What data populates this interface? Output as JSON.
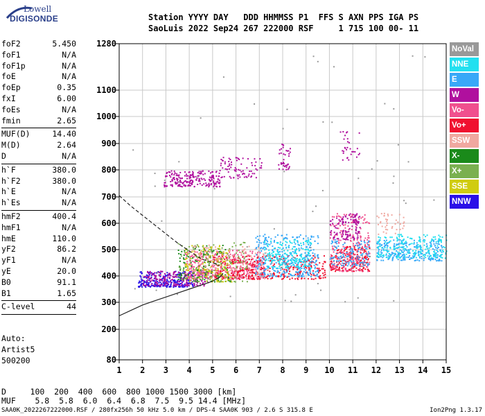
{
  "logo": {
    "top": "Lowell",
    "bottom": "DIGISONDE"
  },
  "header": {
    "line1": "Station YYYY DAY   DDD HHMMSS P1  FFS S AXN PPS IGA PS",
    "line2": "SaoLuis 2022 Sep24 267 222000 RSF     1 715 100 00- 11"
  },
  "params": {
    "group1": [
      {
        "label": "foF2",
        "value": "5.450"
      },
      {
        "label": "foF1",
        "value": "N/A"
      },
      {
        "label": "foF1p",
        "value": "N/A"
      },
      {
        "label": "foE",
        "value": "N/A"
      },
      {
        "label": "foEp",
        "value": "0.35"
      },
      {
        "label": "fxI",
        "value": "6.00"
      },
      {
        "label": "foEs",
        "value": "N/A"
      },
      {
        "label": "fmin",
        "value": "2.65"
      }
    ],
    "group2": [
      {
        "label": "MUF(D)",
        "value": "14.40"
      },
      {
        "label": "M(D)",
        "value": "2.64"
      },
      {
        "label": "D",
        "value": "N/A"
      }
    ],
    "group3": [
      {
        "label": "h`F",
        "value": "380.0"
      },
      {
        "label": "h`F2",
        "value": "380.0"
      },
      {
        "label": "h`E",
        "value": "N/A"
      },
      {
        "label": "h`Es",
        "value": "N/A"
      }
    ],
    "group4": [
      {
        "label": "hmF2",
        "value": "400.4"
      },
      {
        "label": "hmF1",
        "value": "N/A"
      },
      {
        "label": "hmE",
        "value": "110.0"
      },
      {
        "label": "yF2",
        "value": "86.2"
      },
      {
        "label": "yF1",
        "value": "N/A"
      },
      {
        "label": "yE",
        "value": "20.0"
      },
      {
        "label": "B0",
        "value": "91.1"
      },
      {
        "label": "B1",
        "value": "1.65"
      }
    ],
    "group5": [
      {
        "label": "C-level",
        "value": "44"
      }
    ]
  },
  "auto": {
    "line1": "Auto:",
    "line2": "Artist5",
    "line3": "500200"
  },
  "legend": [
    {
      "label": "NoVal",
      "color": "#999999"
    },
    {
      "label": "NNE",
      "color": "#22e0f0"
    },
    {
      "label": "E",
      "color": "#38a8f8"
    },
    {
      "label": "W",
      "color": "#b0109e"
    },
    {
      "label": "Vo-",
      "color": "#f0508e"
    },
    {
      "label": "Vo+",
      "color": "#f01030"
    },
    {
      "label": "SSW",
      "color": "#f0a8a0"
    },
    {
      "label": "X-",
      "color": "#1a8a1a"
    },
    {
      "label": "X+",
      "color": "#7ab050"
    },
    {
      "label": "SSE",
      "color": "#d0cc10"
    },
    {
      "label": "NNW",
      "color": "#2a10e8"
    }
  ],
  "bottom": {
    "dline": "D     100  200  400  600  800 1000 1500 3000 [km]",
    "mufline": "MUF    5.8  5.8  6.0  6.4  6.8  7.5  9.5 14.4 [MHz]"
  },
  "footer": "SAA0K_2022267222000.RSF / 280fx256h 50 kHz 5.0 km / DPS-4 SAA0K 903 / 2.6 S 315.8 E",
  "version": "Ion2Png 1.3.17",
  "chart_data": {
    "type": "scatter",
    "x_ticks": [
      1,
      2,
      3,
      4,
      5,
      6,
      7,
      8,
      9,
      10,
      11,
      12,
      13,
      14,
      15
    ],
    "y_ticks": [
      80,
      200,
      300,
      400,
      500,
      600,
      700,
      800,
      900,
      1000,
      1100,
      1280
    ],
    "xlim": [
      1,
      15
    ],
    "ylim": [
      80,
      1280
    ],
    "grid": true,
    "y_scale": "nonlinear",
    "clusters": [
      {
        "series": "W",
        "x": [
          2.9,
          5.3
        ],
        "y": [
          740,
          800
        ],
        "n": 220
      },
      {
        "series": "W",
        "x": [
          5.3,
          7.1
        ],
        "y": [
          770,
          850
        ],
        "n": 80
      },
      {
        "series": "W",
        "x": [
          7.8,
          8.3
        ],
        "y": [
          800,
          900
        ],
        "n": 40
      },
      {
        "series": "W",
        "x": [
          10.2,
          11.4
        ],
        "y": [
          840,
          950
        ],
        "n": 30
      },
      {
        "series": "NNW",
        "x": [
          1.8,
          4.2
        ],
        "y": [
          360,
          420
        ],
        "n": 260
      },
      {
        "series": "W",
        "x": [
          2.0,
          4.8
        ],
        "y": [
          365,
          420
        ],
        "n": 200
      },
      {
        "series": "Vo-",
        "x": [
          3.8,
          7.2
        ],
        "y": [
          390,
          500
        ],
        "n": 420
      },
      {
        "series": "Vo+",
        "x": [
          5.0,
          9.8
        ],
        "y": [
          390,
          480
        ],
        "n": 380
      },
      {
        "series": "E",
        "x": [
          6.8,
          9.5
        ],
        "y": [
          400,
          560
        ],
        "n": 320
      },
      {
        "series": "NNE",
        "x": [
          7.2,
          9.2
        ],
        "y": [
          430,
          540
        ],
        "n": 200
      },
      {
        "series": "X-",
        "x": [
          3.5,
          5.8
        ],
        "y": [
          380,
          520
        ],
        "n": 140
      },
      {
        "series": "SSE",
        "x": [
          3.8,
          5.8
        ],
        "y": [
          380,
          520
        ],
        "n": 140
      },
      {
        "series": "X+",
        "x": [
          3.5,
          6.5
        ],
        "y": [
          380,
          530
        ],
        "n": 120
      },
      {
        "series": "SSW",
        "x": [
          4.0,
          7.5
        ],
        "y": [
          390,
          520
        ],
        "n": 140
      },
      {
        "series": "Vo+",
        "x": [
          10.0,
          11.7
        ],
        "y": [
          420,
          520
        ],
        "n": 220
      },
      {
        "series": "Vo-",
        "x": [
          10.0,
          11.7
        ],
        "y": [
          420,
          640
        ],
        "n": 220
      },
      {
        "series": "W",
        "x": [
          10.0,
          11.3
        ],
        "y": [
          540,
          640
        ],
        "n": 120
      },
      {
        "series": "E",
        "x": [
          10.0,
          11.7
        ],
        "y": [
          440,
          540
        ],
        "n": 120
      },
      {
        "series": "E",
        "x": [
          12.0,
          14.8
        ],
        "y": [
          460,
          540
        ],
        "n": 260
      },
      {
        "series": "NNE",
        "x": [
          12.0,
          15.0
        ],
        "y": [
          470,
          560
        ],
        "n": 200
      },
      {
        "series": "SSW",
        "x": [
          12.0,
          13.2
        ],
        "y": [
          560,
          640
        ],
        "n": 40
      },
      {
        "series": "NoVal",
        "x": [
          1.5,
          14.5
        ],
        "y": [
          300,
          1250
        ],
        "n": 60
      }
    ],
    "curves": [
      {
        "style": "solid",
        "x": [
          1.0,
          1.5,
          2.0,
          2.5,
          3.0,
          3.5,
          4.0,
          4.5,
          5.0,
          5.3,
          5.45
        ],
        "y": [
          250,
          270,
          290,
          305,
          320,
          335,
          350,
          365,
          380,
          395,
          410
        ]
      },
      {
        "style": "dashed",
        "x": [
          1.0,
          1.5,
          2.0,
          2.5,
          3.0,
          3.5,
          4.0,
          4.5,
          5.0,
          5.3
        ],
        "y": [
          705,
          665,
          630,
          595,
          560,
          525,
          495,
          465,
          450,
          440
        ]
      }
    ]
  }
}
